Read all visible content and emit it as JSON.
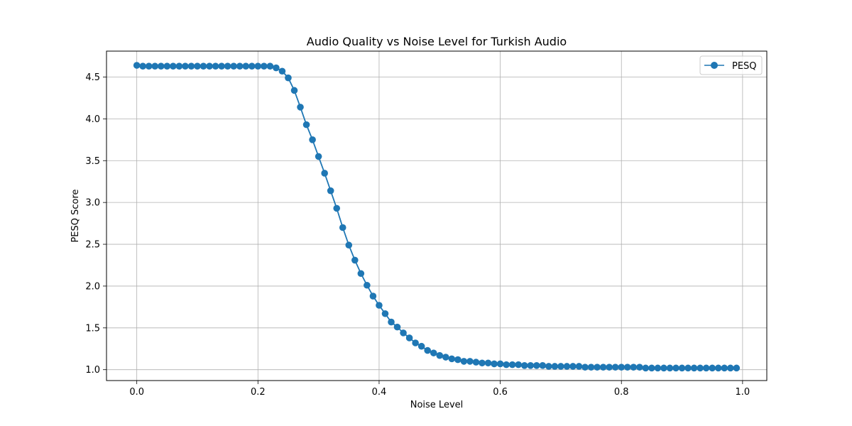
{
  "chart_data": {
    "type": "line",
    "title": "Audio Quality vs Noise Level for Turkish Audio",
    "xlabel": "Noise Level",
    "ylabel": "PESQ Score",
    "xlim": [
      -0.05,
      1.04
    ],
    "ylim": [
      0.87,
      4.81
    ],
    "xticks": [
      0.0,
      0.2,
      0.4,
      0.6,
      0.8,
      1.0
    ],
    "xtick_labels": [
      "0.0",
      "0.2",
      "0.4",
      "0.6",
      "0.8",
      "1.0"
    ],
    "yticks": [
      1.0,
      1.5,
      2.0,
      2.5,
      3.0,
      3.5,
      4.0,
      4.5
    ],
    "ytick_labels": [
      "1.0",
      "1.5",
      "2.0",
      "2.5",
      "3.0",
      "3.5",
      "4.0",
      "4.5"
    ],
    "grid": true,
    "legend_position": "top-right",
    "series": [
      {
        "name": "PESQ",
        "color": "#1f77b4",
        "marker": "circle",
        "x": [
          0.0,
          0.01,
          0.02,
          0.03,
          0.04,
          0.05,
          0.06,
          0.07,
          0.08,
          0.09,
          0.1,
          0.11,
          0.12,
          0.13,
          0.14,
          0.15,
          0.16,
          0.17,
          0.18,
          0.19,
          0.2,
          0.21,
          0.22,
          0.23,
          0.24,
          0.25,
          0.26,
          0.27,
          0.28,
          0.29,
          0.3,
          0.31,
          0.32,
          0.33,
          0.34,
          0.35,
          0.36,
          0.37,
          0.38,
          0.39,
          0.4,
          0.41,
          0.42,
          0.43,
          0.44,
          0.45,
          0.46,
          0.47,
          0.48,
          0.49,
          0.5,
          0.51,
          0.52,
          0.53,
          0.54,
          0.55,
          0.56,
          0.57,
          0.58,
          0.59,
          0.6,
          0.61,
          0.62,
          0.63,
          0.64,
          0.65,
          0.66,
          0.67,
          0.68,
          0.69,
          0.7,
          0.71,
          0.72,
          0.73,
          0.74,
          0.75,
          0.76,
          0.77,
          0.78,
          0.79,
          0.8,
          0.81,
          0.82,
          0.83,
          0.84,
          0.85,
          0.86,
          0.87,
          0.88,
          0.89,
          0.9,
          0.91,
          0.92,
          0.93,
          0.94,
          0.95,
          0.96,
          0.97,
          0.98,
          0.99
        ],
        "values": [
          4.64,
          4.63,
          4.63,
          4.63,
          4.63,
          4.63,
          4.63,
          4.63,
          4.63,
          4.63,
          4.63,
          4.63,
          4.63,
          4.63,
          4.63,
          4.63,
          4.63,
          4.63,
          4.63,
          4.63,
          4.63,
          4.63,
          4.63,
          4.61,
          4.57,
          4.49,
          4.34,
          4.14,
          3.93,
          3.75,
          3.55,
          3.35,
          3.14,
          2.93,
          2.7,
          2.49,
          2.31,
          2.15,
          2.01,
          1.88,
          1.77,
          1.67,
          1.57,
          1.51,
          1.44,
          1.38,
          1.32,
          1.28,
          1.23,
          1.2,
          1.17,
          1.15,
          1.13,
          1.12,
          1.1,
          1.1,
          1.09,
          1.08,
          1.08,
          1.07,
          1.07,
          1.06,
          1.06,
          1.06,
          1.05,
          1.05,
          1.05,
          1.05,
          1.04,
          1.04,
          1.04,
          1.04,
          1.04,
          1.04,
          1.03,
          1.03,
          1.03,
          1.03,
          1.03,
          1.03,
          1.03,
          1.03,
          1.03,
          1.03,
          1.02,
          1.02,
          1.02,
          1.02,
          1.02,
          1.02,
          1.02,
          1.02,
          1.02,
          1.02,
          1.02,
          1.02,
          1.02,
          1.02,
          1.02,
          1.02
        ]
      }
    ]
  }
}
